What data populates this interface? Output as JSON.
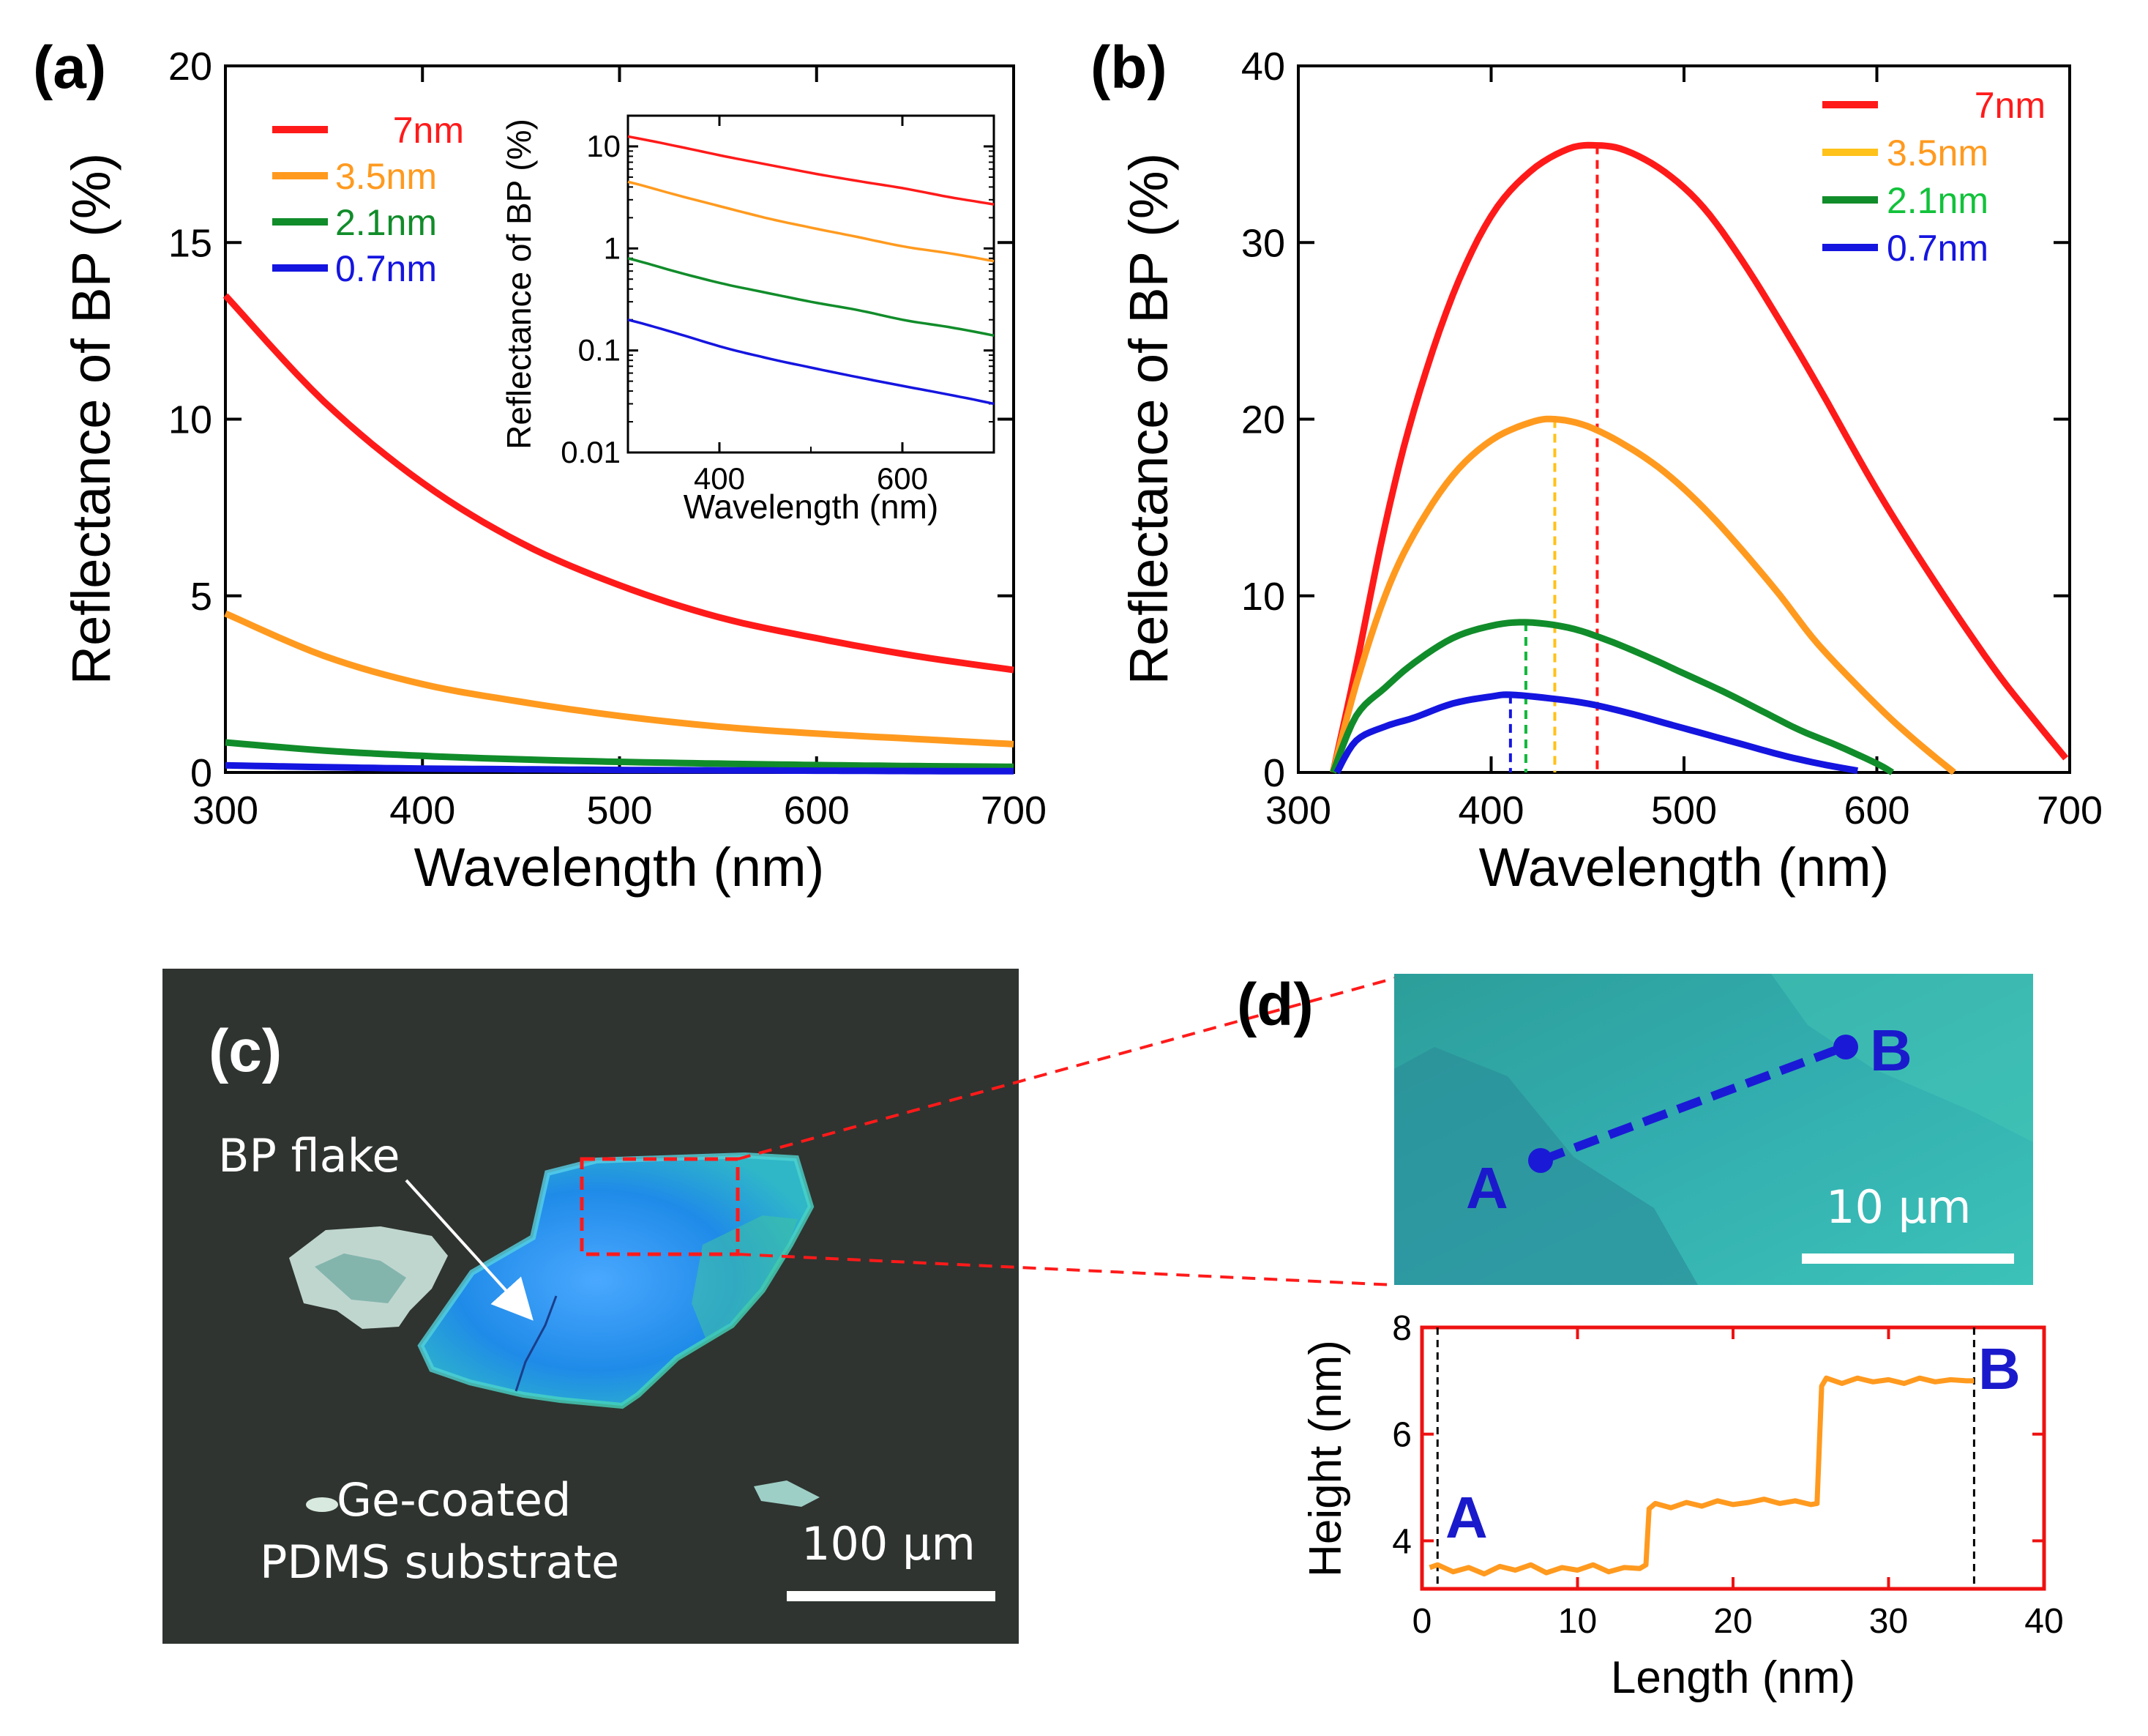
{
  "chart_data": [
    {
      "panel": "(a)",
      "type": "line",
      "xlabel": "Wavelength (nm)",
      "ylabel": "Reflectance of BP (%)",
      "xlim": [
        300,
        700
      ],
      "ylim": [
        0,
        20
      ],
      "xticks": [
        300,
        400,
        500,
        600,
        700
      ],
      "yticks": [
        0,
        5,
        10,
        15,
        20
      ],
      "legend_position": "top-left",
      "x": [
        300,
        350,
        400,
        450,
        500,
        550,
        600,
        650,
        700
      ],
      "series": [
        {
          "name": "7nm",
          "color": "#ff1a1a",
          "values": [
            13.5,
            10.5,
            8.2,
            6.5,
            5.3,
            4.4,
            3.8,
            3.3,
            2.9
          ]
        },
        {
          "name": "3.5nm",
          "color": "#ff9a1f",
          "values": [
            4.5,
            3.3,
            2.5,
            2.0,
            1.6,
            1.3,
            1.1,
            0.95,
            0.8
          ]
        },
        {
          "name": "2.1nm",
          "color": "#118c2a",
          "values": [
            0.85,
            0.62,
            0.47,
            0.37,
            0.3,
            0.25,
            0.21,
            0.18,
            0.16
          ]
        },
        {
          "name": "0.7nm",
          "color": "#1515e0",
          "values": [
            0.2,
            0.15,
            0.11,
            0.09,
            0.07,
            0.06,
            0.05,
            0.04,
            0.035
          ]
        }
      ],
      "inset": {
        "xlabel": "Wavelength (nm)",
        "ylabel": "Reflectance of BP (%)",
        "xlim": [
          300,
          700
        ],
        "yscale": "log",
        "ylim": [
          0.01,
          20
        ],
        "xticks": [
          400,
          600
        ],
        "xtick_labels": [
          "400",
          "600"
        ],
        "yticks": [
          0.01,
          0.1,
          1,
          10
        ],
        "ytick_labels": [
          "0.01",
          "0.1",
          "1",
          "10"
        ],
        "x": [
          300,
          350,
          400,
          450,
          500,
          550,
          600,
          650,
          700
        ],
        "series": [
          {
            "name": "7nm",
            "color": "#ff1a1a",
            "values": [
              12.5,
              10.2,
              8.2,
              6.7,
              5.5,
              4.6,
              3.9,
              3.2,
              2.7
            ]
          },
          {
            "name": "3.5nm",
            "color": "#ff9a1f",
            "values": [
              4.5,
              3.4,
              2.6,
              2.0,
              1.6,
              1.3,
              1.05,
              0.9,
              0.75
            ]
          },
          {
            "name": "2.1nm",
            "color": "#118c2a",
            "values": [
              0.8,
              0.6,
              0.46,
              0.37,
              0.3,
              0.25,
              0.2,
              0.17,
              0.14
            ]
          },
          {
            "name": "0.7nm",
            "color": "#1515e0",
            "values": [
              0.2,
              0.15,
              0.11,
              0.085,
              0.068,
              0.055,
              0.045,
              0.037,
              0.03
            ]
          }
        ]
      }
    },
    {
      "panel": "(b)",
      "type": "line",
      "xlabel": "Wavelength (nm)",
      "ylabel": "Reflectance of BP (%)",
      "xlim": [
        300,
        700
      ],
      "ylim": [
        0,
        40
      ],
      "xticks": [
        300,
        400,
        500,
        600,
        700
      ],
      "yticks": [
        0,
        10,
        20,
        30,
        40
      ],
      "legend_position": "top-right",
      "series": [
        {
          "name": "7nm",
          "color": "#ff1a1a",
          "peak_x": 455,
          "points": [
            [
              318,
              0
            ],
            [
              330,
              6
            ],
            [
              345,
              14
            ],
            [
              360,
              20.5
            ],
            [
              380,
              27
            ],
            [
              400,
              31.5
            ],
            [
              420,
              34
            ],
            [
              440,
              35.3
            ],
            [
              455,
              35.5
            ],
            [
              470,
              35.2
            ],
            [
              490,
              34
            ],
            [
              510,
              32
            ],
            [
              530,
              29
            ],
            [
              550,
              25.5
            ],
            [
              570,
              21.8
            ],
            [
              600,
              16
            ],
            [
              630,
              10.8
            ],
            [
              660,
              6
            ],
            [
              680,
              3.2
            ],
            [
              698,
              0.8
            ]
          ]
        },
        {
          "name": "3.5nm",
          "color": "#ff9a1f",
          "peak_x": 433,
          "points": [
            [
              318,
              0
            ],
            [
              330,
              5
            ],
            [
              345,
              10
            ],
            [
              360,
              13.5
            ],
            [
              380,
              16.8
            ],
            [
              400,
              18.8
            ],
            [
              420,
              19.8
            ],
            [
              433,
              20
            ],
            [
              450,
              19.6
            ],
            [
              470,
              18.5
            ],
            [
              490,
              17
            ],
            [
              510,
              15
            ],
            [
              530,
              12.6
            ],
            [
              550,
              10
            ],
            [
              570,
              7.2
            ],
            [
              600,
              3.8
            ],
            [
              620,
              1.8
            ],
            [
              640,
              0
            ]
          ]
        },
        {
          "name": "2.1nm",
          "color": "#118c2a",
          "peak_x": 418,
          "points": [
            [
              318,
              0
            ],
            [
              330,
              3.2
            ],
            [
              345,
              4.8
            ],
            [
              360,
              6.2
            ],
            [
              380,
              7.6
            ],
            [
              400,
              8.3
            ],
            [
              418,
              8.5
            ],
            [
              440,
              8.2
            ],
            [
              460,
              7.5
            ],
            [
              480,
              6.6
            ],
            [
              500,
              5.6
            ],
            [
              520,
              4.6
            ],
            [
              540,
              3.5
            ],
            [
              560,
              2.4
            ],
            [
              580,
              1.5
            ],
            [
              600,
              0.5
            ],
            [
              608,
              0
            ]
          ]
        },
        {
          "name": "0.7nm",
          "color": "#1515e0",
          "peak_x": 410,
          "points": [
            [
              320,
              0
            ],
            [
              330,
              1.8
            ],
            [
              345,
              2.6
            ],
            [
              360,
              3.1
            ],
            [
              380,
              3.9
            ],
            [
              400,
              4.3
            ],
            [
              410,
              4.4
            ],
            [
              430,
              4.2
            ],
            [
              450,
              3.9
            ],
            [
              470,
              3.4
            ],
            [
              490,
              2.8
            ],
            [
              510,
              2.2
            ],
            [
              530,
              1.6
            ],
            [
              550,
              1.0
            ],
            [
              570,
              0.5
            ],
            [
              590,
              0.1
            ]
          ]
        }
      ]
    },
    {
      "panel": "(d)",
      "type": "line",
      "xlabel": "Length (nm)",
      "ylabel": "Height (nm)",
      "xlim": [
        0,
        40
      ],
      "ylim": [
        3.1,
        8
      ],
      "xticks": [
        0,
        10,
        20,
        30,
        40
      ],
      "yticks": [
        4,
        6,
        8
      ],
      "markers_x": [
        1,
        35.5
      ],
      "series": [
        {
          "name": "profile",
          "color": "#ff9a1f",
          "points": [
            [
              0.5,
              3.5
            ],
            [
              1,
              3.55
            ],
            [
              2,
              3.42
            ],
            [
              3,
              3.5
            ],
            [
              4,
              3.38
            ],
            [
              5,
              3.52
            ],
            [
              6,
              3.45
            ],
            [
              7,
              3.55
            ],
            [
              8,
              3.4
            ],
            [
              9,
              3.5
            ],
            [
              10,
              3.45
            ],
            [
              11,
              3.55
            ],
            [
              12,
              3.42
            ],
            [
              13,
              3.5
            ],
            [
              14,
              3.48
            ],
            [
              14.4,
              3.55
            ],
            [
              14.6,
              4.6
            ],
            [
              15,
              4.7
            ],
            [
              16,
              4.62
            ],
            [
              17,
              4.72
            ],
            [
              18,
              4.65
            ],
            [
              19,
              4.75
            ],
            [
              20,
              4.68
            ],
            [
              21,
              4.72
            ],
            [
              22,
              4.78
            ],
            [
              23,
              4.7
            ],
            [
              24,
              4.75
            ],
            [
              25,
              4.68
            ],
            [
              25.4,
              4.7
            ],
            [
              25.7,
              6.9
            ],
            [
              26,
              7.05
            ],
            [
              27,
              6.95
            ],
            [
              28,
              7.05
            ],
            [
              29,
              6.98
            ],
            [
              30,
              7.02
            ],
            [
              31,
              6.95
            ],
            [
              32,
              7.05
            ],
            [
              33,
              6.98
            ],
            [
              34,
              7.02
            ],
            [
              35,
              7.0
            ],
            [
              35.5,
              7.0
            ]
          ]
        }
      ]
    }
  ],
  "panels": {
    "a": "(a)",
    "b": "(b)",
    "c": "(c)",
    "d": "(d)"
  },
  "micrograph": {
    "flake_label": "BP flake",
    "substrate_label_1": "Ge-coated",
    "substrate_label_2": "PDMS substrate",
    "scale_label": "100 μm"
  },
  "zoom": {
    "point_a": "A",
    "point_b": "B",
    "scale_label": "10 μm"
  },
  "profile": {
    "point_a": "A",
    "point_b": "B"
  },
  "colors": {
    "red": "#ff1a1a",
    "orange": "#ff9a1f",
    "green": "#118c2a",
    "blue": "#1515e0",
    "frame_red": "#ee1111"
  }
}
